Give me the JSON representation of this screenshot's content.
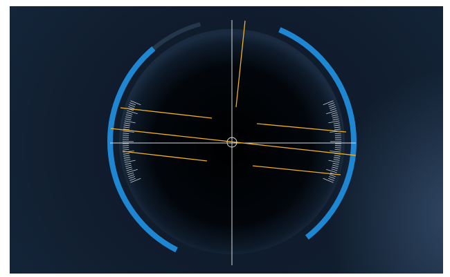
{
  "hud": {
    "pitch_ladder_color": "#f0b21a",
    "arc_color": "#1f87d2",
    "arc_dim_color": "#23364a",
    "crosshair_color": "#d7dbe0",
    "tick_color": "#c9cfd6",
    "dial_inner_color": "#000000"
  },
  "icons": {
    "reticle": "center-reticle-icon"
  }
}
